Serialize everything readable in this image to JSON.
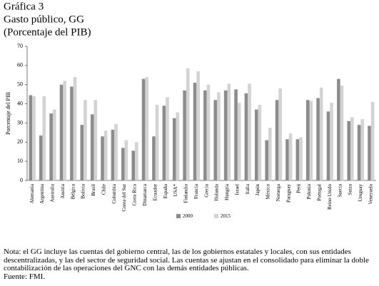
{
  "chart_data": {
    "type": "bar",
    "title": "Gráfica 3",
    "subtitle": "Gasto público, GG",
    "unit_label": "(Porcentaje del PIB)",
    "y_label": "Porcentaje del PIB",
    "categories": [
      "Alemania",
      "Argentina",
      "Australia",
      "Austria",
      "Bélgica",
      "Bolivia",
      "Brasil",
      "Chile",
      "Colombia",
      "Corea del Sur",
      "Costa Rica",
      "Dinamarca",
      "Ecuador",
      "España",
      "USA*",
      "Finlandia",
      "Francia",
      "Grecia",
      "Holanda",
      "Hungría",
      "Israel",
      "Italia",
      "Japón",
      "México",
      "Noruega",
      "Paraguay",
      "Perú",
      "Polonia",
      "Portugal",
      "Reino Unido",
      "Suecia",
      "Suiza",
      "Uruguay",
      "Venezuela"
    ],
    "series": [
      {
        "name": "2000",
        "color": "#8c8c8c",
        "values": [
          44.5,
          23.5,
          35,
          50,
          49,
          29,
          34.5,
          23,
          26.5,
          17,
          15.5,
          53,
          23,
          39,
          32.5,
          47,
          51,
          47,
          42,
          47,
          47.5,
          45.5,
          37,
          21,
          42,
          21.5,
          21.5,
          42,
          43,
          36,
          53,
          31,
          29,
          28.5
        ]
      },
      {
        "name": "2015",
        "color": "#d3d3d3",
        "values": [
          44,
          44,
          37,
          52,
          54,
          42,
          42,
          26,
          29.5,
          21,
          20,
          54,
          39.5,
          43.5,
          35.5,
          58.5,
          57,
          50,
          46,
          50.5,
          40.5,
          50.5,
          39.5,
          27.5,
          48,
          24.5,
          22.5,
          41.5,
          48.5,
          40.5,
          49.5,
          33,
          32,
          41
        ]
      }
    ],
    "ylim": [
      0,
      70
    ],
    "yticks": [
      0,
      10,
      20,
      30,
      40,
      50,
      60,
      70
    ],
    "grid": false
  },
  "note": "Nota: el GG incluye las cuentas del gobierno central, las de los gobiernos estatales y locales, con sus entidades descentralizadas, y las del sector de seguridad social. Las cuentas se ajustan en el consolidado para eliminar la doble contabilización de las operaciones del GNC con las demás entidades públicas.",
  "source": "Fuente: FMI."
}
